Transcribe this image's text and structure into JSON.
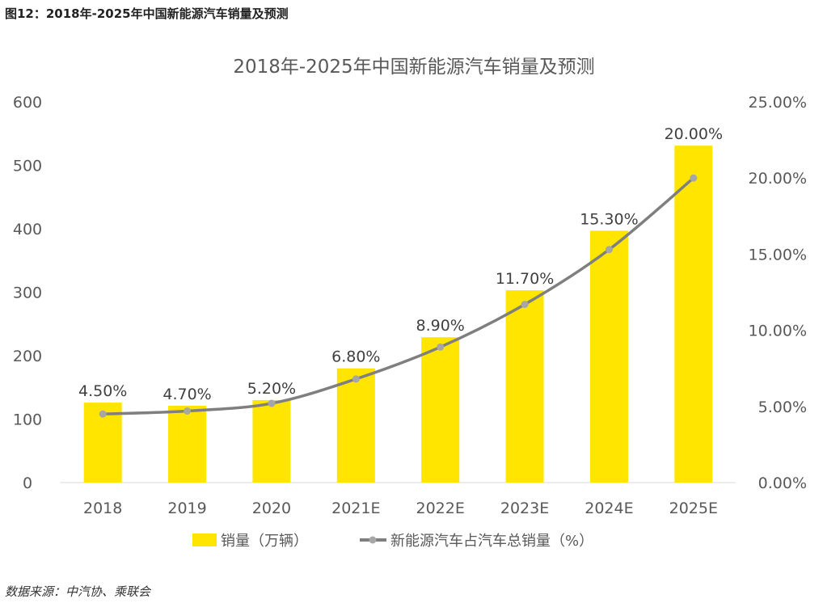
{
  "figure_caption": "图12：2018年-2025年中国新能源汽车销量及预测",
  "source": "数据来源：中汽协、乘联会",
  "chart_data": {
    "type": "bar+line",
    "title": "2018年-2025年中国新能源汽车销量及预测",
    "categories": [
      "2018",
      "2019",
      "2020",
      "2021E",
      "2022E",
      "2023E",
      "2024E",
      "2025E"
    ],
    "series": [
      {
        "name": "销量（万辆）",
        "type": "bar",
        "axis": "left",
        "color": "#FFE500",
        "values": [
          126,
          121,
          130,
          180,
          229,
          303,
          397,
          531
        ]
      },
      {
        "name": "新能源汽车占汽车总销量（%）",
        "type": "line",
        "axis": "right",
        "color": "#7F7F7F",
        "marker_color": "#A6A6A6",
        "values": [
          4.5,
          4.7,
          5.2,
          6.8,
          8.9,
          11.7,
          15.3,
          20.0
        ],
        "labels": [
          "4.50%",
          "4.70%",
          "5.20%",
          "6.80%",
          "8.90%",
          "11.70%",
          "15.30%",
          "20.00%"
        ]
      }
    ],
    "y_left": {
      "ylim": [
        0,
        600
      ],
      "ticks": [
        "0",
        "100",
        "200",
        "300",
        "400",
        "500",
        "600"
      ]
    },
    "y_right": {
      "ylim": [
        0,
        25
      ],
      "ticks": [
        "0.00%",
        "5.00%",
        "10.00%",
        "15.00%",
        "20.00%",
        "25.00%"
      ]
    },
    "grid": false,
    "legend": "bottom"
  }
}
